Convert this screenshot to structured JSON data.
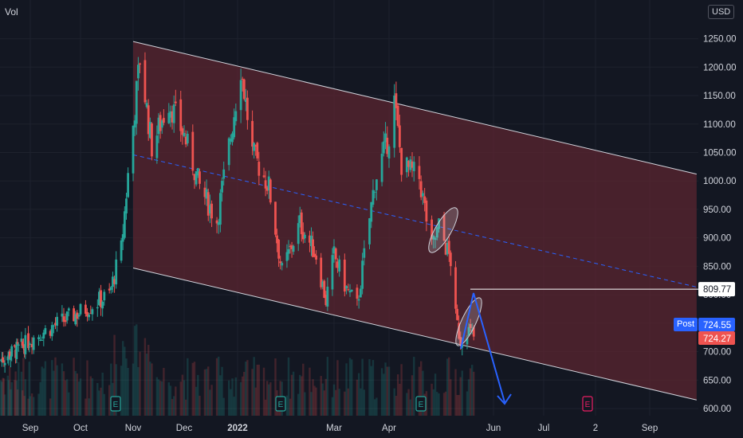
{
  "header": {
    "volume_label": "Vol",
    "currency": "USD"
  },
  "colors": {
    "background": "#131722",
    "up": "#26a69a",
    "down": "#ef5350",
    "channel_fill": "#5b2530",
    "channel_line": "#d1d4dc",
    "midline": "#2962ff",
    "arrow": "#2962ff",
    "text": "#d1d4dc"
  },
  "chart_data": {
    "type": "candlestick",
    "y_axis": {
      "ticks": [
        600,
        650,
        700,
        750,
        800,
        850,
        900,
        950,
        1000,
        1050,
        1100,
        1150,
        1200,
        1250
      ],
      "range": [
        600,
        1300
      ]
    },
    "x_axis": {
      "tick_labels": [
        "Sep",
        "Oct",
        "Nov",
        "Dec",
        "2022",
        "Mar",
        "Apr",
        "Jun",
        "Jul",
        "2",
        "Sep"
      ]
    },
    "price_labels": [
      {
        "name": "level",
        "value": "809.77",
        "style": "white"
      },
      {
        "name": "post",
        "label": "Post",
        "value": "724.55",
        "style": "blue"
      },
      {
        "name": "last",
        "value": "724.27",
        "style": "red"
      }
    ],
    "earnings_markers": [
      "E",
      "E",
      "E",
      "E"
    ],
    "channel": {
      "upper": [
        [
          "2021-11-01",
          1245
        ],
        [
          "2022-09-30",
          1012
        ]
      ],
      "lower": [
        [
          "2021-11-01",
          847
        ],
        [
          "2022-09-30",
          615
        ]
      ]
    },
    "horizontal_line": {
      "from": "2022-05-01",
      "value": 809.77
    },
    "arrow": {
      "from": [
        "2022-05-01",
        810
      ],
      "to": [
        "2022-05-27",
        630
      ]
    }
  }
}
